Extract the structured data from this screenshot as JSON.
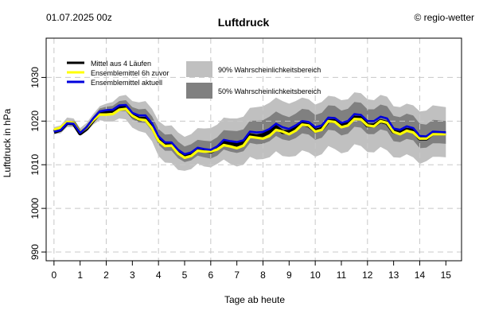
{
  "header": {
    "date": "01.07.2025 00z",
    "brand": "© regio-wetter"
  },
  "chart_data": {
    "type": "line",
    "title": "Luftdruck",
    "xlabel": "Tage ab heute",
    "ylabel": "Luftdruck in hPa",
    "xlim": [
      -0.3,
      15.6
    ],
    "ylim": [
      988,
      1039
    ],
    "xticks": [
      0,
      1,
      2,
      3,
      4,
      5,
      6,
      7,
      8,
      9,
      10,
      11,
      12,
      13,
      14,
      15
    ],
    "yticks": [
      990,
      1000,
      1010,
      1020,
      1030
    ],
    "grid": true,
    "legend_position": "top-left",
    "colors": {
      "mittel4": "#000000",
      "ens6h": "#ffff00",
      "ens_aktuell": "#0000dd",
      "band90": "#c0c0c0",
      "band50": "#808080"
    },
    "legend": {
      "lines": [
        {
          "key": "mittel4",
          "label": "Mittel aus 4 Läufen"
        },
        {
          "key": "ens6h",
          "label": "Ensemblemittel 6h zuvor"
        },
        {
          "key": "ens_aktuell",
          "label": "Ensemblemittel aktuell"
        }
      ],
      "bands": [
        {
          "key": "band90",
          "label": "90% Wahrscheinlichkeitsbereich"
        },
        {
          "key": "band50",
          "label": "50% Wahrscheinlichkeitsbereich"
        }
      ]
    },
    "x": [
      0,
      0.25,
      0.5,
      0.75,
      1,
      1.25,
      1.5,
      1.75,
      2,
      2.25,
      2.5,
      2.75,
      3,
      3.25,
      3.5,
      3.75,
      4,
      4.25,
      4.5,
      4.75,
      5,
      5.25,
      5.5,
      5.75,
      6,
      6.25,
      6.5,
      6.75,
      7,
      7.25,
      7.5,
      7.75,
      8,
      8.25,
      8.5,
      8.75,
      9,
      9.25,
      9.5,
      9.75,
      10,
      10.25,
      10.5,
      10.75,
      11,
      11.25,
      11.5,
      11.75,
      12,
      12.25,
      12.5,
      12.75,
      13,
      13.25,
      13.5,
      13.75,
      14,
      14.25,
      14.5,
      14.75,
      15
    ],
    "series": [
      {
        "key": "mittel4",
        "name": "Mittel aus 4 Läufen",
        "values": [
          1017.5,
          1018.0,
          1019.6,
          1019.5,
          1017.2,
          1018.3,
          1020.2,
          1021.8,
          1021.8,
          1022.0,
          1023.0,
          1023.1,
          1021.3,
          1020.5,
          1020.5,
          1018.8,
          1016.0,
          1014.6,
          1014.6,
          1013.0,
          1011.9,
          1012.4,
          1013.5,
          1013.3,
          1013.0,
          1013.8,
          1015.2,
          1014.8,
          1014.6,
          1015.0,
          1016.8,
          1016.5,
          1016.8,
          1017.6,
          1018.6,
          1017.5,
          1017.5,
          1018.2,
          1019.4,
          1019.0,
          1017.8,
          1018.2,
          1020.0,
          1020.0,
          1019.0,
          1019.3,
          1020.8,
          1020.7,
          1019.0,
          1019.0,
          1020.0,
          1019.6,
          1017.6,
          1017.3,
          1018.0,
          1017.8,
          1016.0,
          1016.0,
          1017.2,
          1017.2,
          1017.2
        ]
      },
      {
        "key": "ens6h",
        "name": "Ensemblemittel 6h zuvor",
        "values": [
          1018.0,
          1018.5,
          1019.8,
          1019.6,
          1017.4,
          1018.5,
          1020.2,
          1021.5,
          1021.5,
          1021.6,
          1022.6,
          1022.8,
          1021.2,
          1020.4,
          1020.2,
          1018.4,
          1015.5,
          1014.3,
          1014.4,
          1012.6,
          1011.6,
          1012.0,
          1013.2,
          1013.0,
          1013.0,
          1013.5,
          1014.5,
          1014.2,
          1013.8,
          1014.4,
          1016.4,
          1016.2,
          1016.0,
          1016.6,
          1018.0,
          1017.6,
          1017.0,
          1017.8,
          1019.2,
          1019.0,
          1017.6,
          1018.0,
          1020.0,
          1019.8,
          1018.6,
          1019.0,
          1020.5,
          1020.4,
          1019.0,
          1018.8,
          1020.0,
          1019.6,
          1017.5,
          1017.0,
          1017.8,
          1017.4,
          1016.0,
          1016.0,
          1017.0,
          1017.0,
          1017.0
        ]
      },
      {
        "key": "ens_aktuell",
        "name": "Ensemblemittel aktuell",
        "values": [
          1017.6,
          1017.9,
          1019.5,
          1019.4,
          1017.3,
          1018.6,
          1020.6,
          1022.2,
          1022.5,
          1022.6,
          1023.6,
          1023.7,
          1021.9,
          1021.3,
          1021.3,
          1019.5,
          1016.5,
          1015.1,
          1015.1,
          1013.4,
          1012.4,
          1012.8,
          1013.9,
          1013.6,
          1013.4,
          1014.2,
          1015.7,
          1015.4,
          1015.2,
          1015.6,
          1017.6,
          1017.4,
          1017.5,
          1018.2,
          1019.4,
          1018.6,
          1018.2,
          1019.0,
          1020.0,
          1019.8,
          1018.6,
          1019.0,
          1020.8,
          1020.7,
          1019.6,
          1020.0,
          1021.6,
          1021.4,
          1020.0,
          1020.0,
          1021.0,
          1020.6,
          1018.3,
          1018.0,
          1018.8,
          1018.4,
          1016.6,
          1016.5,
          1017.6,
          1017.5,
          1017.4
        ]
      }
    ],
    "band90": {
      "lower": [
        1017.0,
        1017.2,
        1018.6,
        1018.6,
        1016.6,
        1017.6,
        1019.2,
        1020.2,
        1019.9,
        1019.9,
        1020.6,
        1020.4,
        1018.5,
        1017.7,
        1017.3,
        1015.4,
        1012.0,
        1010.5,
        1010.4,
        1008.8,
        1008.6,
        1009.0,
        1010.3,
        1009.6,
        1009.4,
        1010.2,
        1011.2,
        1010.2,
        1009.6,
        1010.0,
        1011.8,
        1011.2,
        1011.3,
        1011.7,
        1013.1,
        1012.0,
        1011.8,
        1012.0,
        1013.3,
        1012.8,
        1011.8,
        1012.4,
        1014.3,
        1013.6,
        1012.6,
        1013.0,
        1014.7,
        1014.3,
        1012.9,
        1012.8,
        1014.1,
        1013.3,
        1011.7,
        1011.6,
        1012.4,
        1011.7,
        1010.2,
        1010.8,
        1011.8,
        1011.8,
        1011.7
      ],
      "upper": [
        1018.6,
        1019.0,
        1020.8,
        1020.6,
        1018.4,
        1019.6,
        1021.6,
        1023.4,
        1024.0,
        1024.4,
        1025.7,
        1026.0,
        1024.6,
        1024.3,
        1024.6,
        1022.8,
        1020.0,
        1018.9,
        1019.0,
        1017.4,
        1016.4,
        1017.0,
        1018.4,
        1018.3,
        1018.4,
        1019.2,
        1020.8,
        1020.6,
        1020.6,
        1021.0,
        1023.0,
        1023.2,
        1023.4,
        1024.2,
        1025.4,
        1024.6,
        1024.0,
        1024.6,
        1025.4,
        1025.0,
        1023.8,
        1024.4,
        1025.8,
        1025.6,
        1024.8,
        1025.0,
        1026.6,
        1026.4,
        1025.0,
        1024.8,
        1026.0,
        1025.6,
        1023.4,
        1023.2,
        1024.0,
        1023.6,
        1022.2,
        1022.4,
        1023.6,
        1023.4,
        1023.2
      ]
    },
    "band50": {
      "lower": [
        1017.3,
        1017.6,
        1019.1,
        1019.0,
        1017.0,
        1018.1,
        1019.9,
        1021.3,
        1021.4,
        1021.4,
        1022.3,
        1022.3,
        1020.4,
        1019.7,
        1019.6,
        1017.7,
        1014.6,
        1013.2,
        1013.2,
        1011.5,
        1010.6,
        1011.0,
        1012.1,
        1011.7,
        1011.4,
        1012.1,
        1013.5,
        1013.0,
        1012.7,
        1013.1,
        1015.0,
        1014.7,
        1014.8,
        1015.4,
        1016.6,
        1015.8,
        1015.5,
        1016.1,
        1017.2,
        1016.9,
        1015.7,
        1016.2,
        1018.0,
        1017.8,
        1016.7,
        1017.1,
        1018.7,
        1018.5,
        1017.0,
        1017.0,
        1018.1,
        1017.7,
        1015.4,
        1015.2,
        1015.9,
        1015.6,
        1013.8,
        1013.9,
        1014.9,
        1014.9,
        1014.8
      ],
      "upper": [
        1018.0,
        1018.3,
        1019.9,
        1019.9,
        1017.6,
        1019.0,
        1021.0,
        1022.9,
        1023.3,
        1023.5,
        1024.6,
        1024.8,
        1023.2,
        1022.7,
        1022.8,
        1021.1,
        1018.2,
        1016.9,
        1017.0,
        1015.3,
        1014.2,
        1014.7,
        1015.7,
        1015.5,
        1015.4,
        1016.3,
        1017.9,
        1017.8,
        1017.7,
        1018.1,
        1020.1,
        1020.1,
        1020.2,
        1021.0,
        1022.2,
        1021.4,
        1020.9,
        1021.7,
        1022.8,
        1022.6,
        1021.4,
        1021.9,
        1023.6,
        1023.5,
        1022.4,
        1022.8,
        1024.4,
        1024.2,
        1022.7,
        1022.7,
        1023.8,
        1023.4,
        1021.2,
        1020.9,
        1021.7,
        1021.3,
        1019.4,
        1019.2,
        1020.3,
        1020.2,
        1020.0
      ]
    }
  }
}
